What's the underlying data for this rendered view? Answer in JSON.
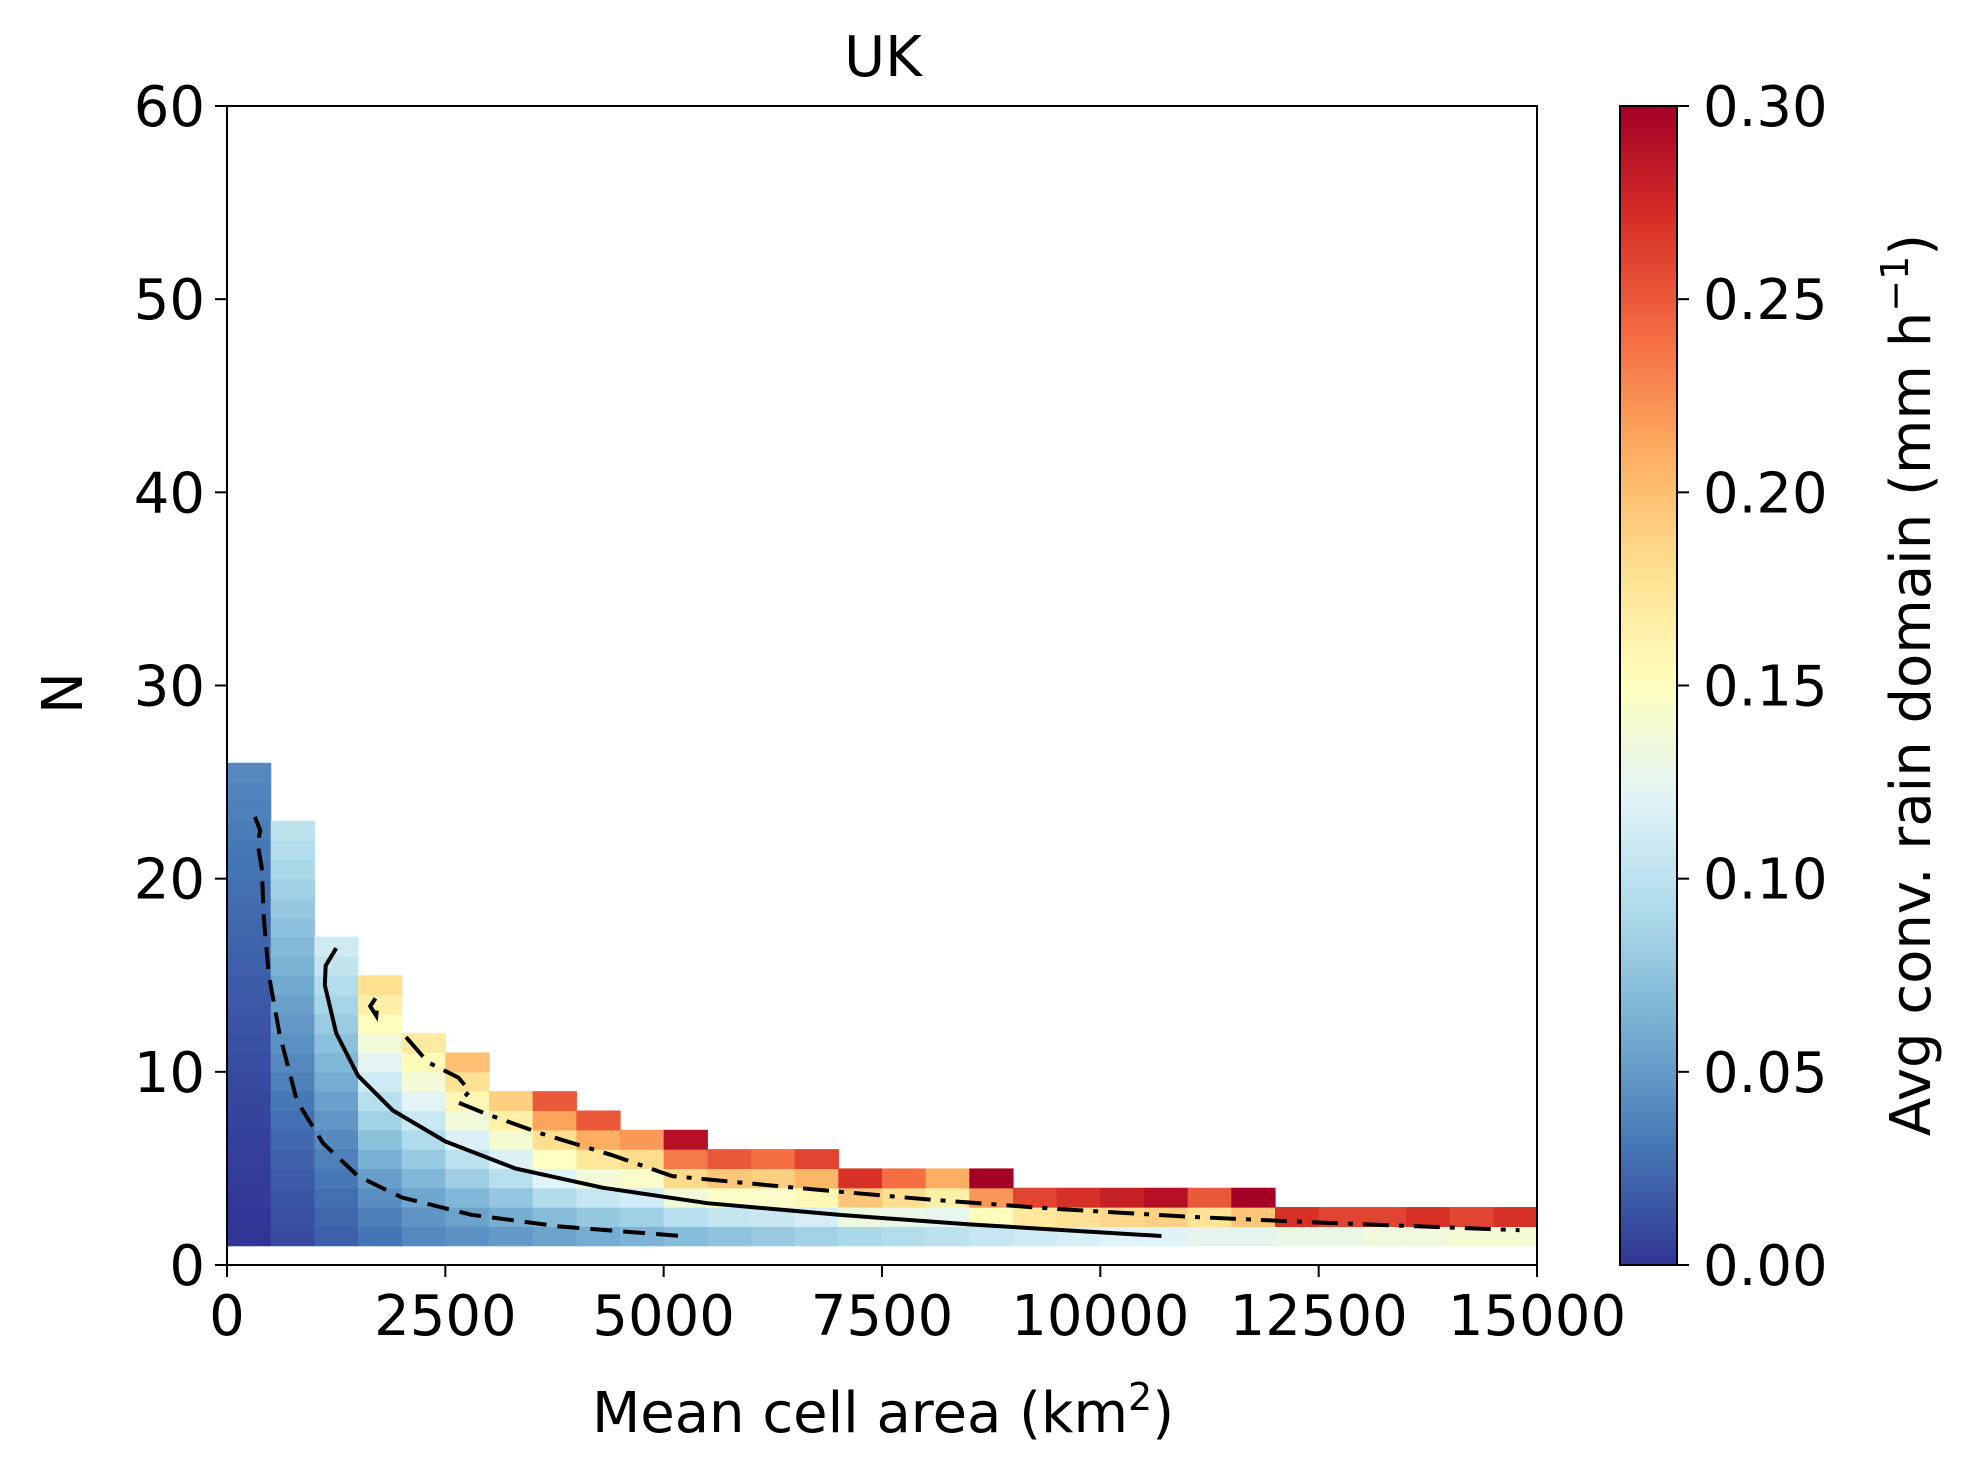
{
  "chart_data": {
    "type": "heatmap",
    "title": "UK",
    "xlabel": "Mean cell area (km",
    "xlabel_sup": "2",
    "xlabel_end": ")",
    "ylabel": "N",
    "xlim": [
      0,
      15000
    ],
    "ylim": [
      0,
      60
    ],
    "xticks": [
      "0",
      "2500",
      "5000",
      "7500",
      "10000",
      "12500",
      "15000"
    ],
    "xtick_values": [
      0,
      2500,
      5000,
      7500,
      10000,
      12500,
      15000
    ],
    "yticks": [
      "0",
      "10",
      "20",
      "30",
      "40",
      "50",
      "60"
    ],
    "ytick_values": [
      0,
      10,
      20,
      30,
      40,
      50,
      60
    ],
    "colorbar": {
      "label": "Avg conv. rain domain (mm h",
      "label_sup": "−1",
      "label_end": ")",
      "range": [
        0.0,
        0.3
      ],
      "ticks": [
        "0.00",
        "0.05",
        "0.10",
        "0.15",
        "0.20",
        "0.25",
        "0.30"
      ],
      "tick_values": [
        0.0,
        0.05,
        0.1,
        0.15,
        0.2,
        0.25,
        0.3
      ],
      "colormap": "RdYlBu_r"
    },
    "grid": false,
    "bin_width": 500,
    "bin_height": 1,
    "columns": [
      {
        "x0": 0,
        "n_min": 1,
        "n_max": 26,
        "v_low": 0.0,
        "v_high": 0.04
      },
      {
        "x0": 500,
        "n_min": 1,
        "n_max": 23,
        "v_low": 0.01,
        "v_high": 0.1
      },
      {
        "x0": 1000,
        "n_min": 1,
        "n_max": 17,
        "v_low": 0.02,
        "v_high": 0.11
      },
      {
        "x0": 1500,
        "n_min": 1,
        "n_max": 15,
        "v_low": 0.03,
        "v_high": 0.18
      },
      {
        "x0": 2000,
        "n_min": 1,
        "n_max": 12,
        "v_low": 0.04,
        "v_high": 0.17
      },
      {
        "x0": 2500,
        "n_min": 1,
        "n_max": 11,
        "v_low": 0.045,
        "v_high": 0.2
      },
      {
        "x0": 3000,
        "n_min": 1,
        "n_max": 9,
        "v_low": 0.05,
        "v_high": 0.19
      },
      {
        "x0": 3500,
        "n_min": 1,
        "n_max": 9,
        "v_low": 0.055,
        "v_high": 0.25
      },
      {
        "x0": 4000,
        "n_min": 1,
        "n_max": 8,
        "v_low": 0.06,
        "v_high": 0.25
      },
      {
        "x0": 4500,
        "n_min": 1,
        "n_max": 7,
        "v_low": 0.065,
        "v_high": 0.22
      },
      {
        "x0": 5000,
        "n_min": 1,
        "n_max": 7,
        "v_low": 0.07,
        "v_high": 0.29
      },
      {
        "x0": 5500,
        "n_min": 1,
        "n_max": 6,
        "v_low": 0.075,
        "v_high": 0.25
      },
      {
        "x0": 6000,
        "n_min": 1,
        "n_max": 6,
        "v_low": 0.08,
        "v_high": 0.24
      },
      {
        "x0": 6500,
        "n_min": 1,
        "n_max": 6,
        "v_low": 0.085,
        "v_high": 0.26
      },
      {
        "x0": 7000,
        "n_min": 1,
        "n_max": 5,
        "v_low": 0.09,
        "v_high": 0.27
      },
      {
        "x0": 7500,
        "n_min": 1,
        "n_max": 5,
        "v_low": 0.095,
        "v_high": 0.24
      },
      {
        "x0": 8000,
        "n_min": 1,
        "n_max": 5,
        "v_low": 0.1,
        "v_high": 0.21
      },
      {
        "x0": 8500,
        "n_min": 1,
        "n_max": 5,
        "v_low": 0.105,
        "v_high": 0.3
      },
      {
        "x0": 9000,
        "n_min": 1,
        "n_max": 4,
        "v_low": 0.11,
        "v_high": 0.26
      },
      {
        "x0": 9500,
        "n_min": 1,
        "n_max": 4,
        "v_low": 0.115,
        "v_high": 0.27
      },
      {
        "x0": 10000,
        "n_min": 1,
        "n_max": 4,
        "v_low": 0.12,
        "v_high": 0.28
      },
      {
        "x0": 10500,
        "n_min": 1,
        "n_max": 4,
        "v_low": 0.12,
        "v_high": 0.29
      },
      {
        "x0": 11000,
        "n_min": 1,
        "n_max": 4,
        "v_low": 0.125,
        "v_high": 0.25
      },
      {
        "x0": 11500,
        "n_min": 1,
        "n_max": 4,
        "v_low": 0.125,
        "v_high": 0.3
      },
      {
        "x0": 12000,
        "n_min": 1,
        "n_max": 3,
        "v_low": 0.13,
        "v_high": 0.27
      },
      {
        "x0": 12500,
        "n_min": 1,
        "n_max": 3,
        "v_low": 0.13,
        "v_high": 0.26
      },
      {
        "x0": 13000,
        "n_min": 1,
        "n_max": 3,
        "v_low": 0.135,
        "v_high": 0.26
      },
      {
        "x0": 13500,
        "n_min": 1,
        "n_max": 3,
        "v_low": 0.135,
        "v_high": 0.27
      },
      {
        "x0": 14000,
        "n_min": 1,
        "n_max": 3,
        "v_low": 0.14,
        "v_high": 0.26
      },
      {
        "x0": 14500,
        "n_min": 1,
        "n_max": 3,
        "v_low": 0.14,
        "v_high": 0.27
      }
    ],
    "contours": [
      {
        "style": "dashed",
        "points": [
          [
            320,
            23.2
          ],
          [
            380,
            22.5
          ],
          [
            350,
            21.8
          ],
          [
            400,
            20.5
          ],
          [
            420,
            18
          ],
          [
            480,
            15
          ],
          [
            600,
            12
          ],
          [
            800,
            8.5
          ],
          [
            1100,
            6.3
          ],
          [
            1500,
            4.6
          ],
          [
            2000,
            3.5
          ],
          [
            2800,
            2.6
          ],
          [
            3800,
            2.0
          ],
          [
            5200,
            1.5
          ]
        ]
      },
      {
        "style": "solid",
        "points": [
          [
            1250,
            16.4
          ],
          [
            1130,
            15.5
          ],
          [
            1120,
            14.5
          ],
          [
            1250,
            12
          ],
          [
            1500,
            9.8
          ],
          [
            1900,
            8.0
          ],
          [
            2500,
            6.4
          ],
          [
            3300,
            5.0
          ],
          [
            4300,
            4.0
          ],
          [
            5500,
            3.2
          ],
          [
            7000,
            2.6
          ],
          [
            8500,
            2.1
          ],
          [
            10700,
            1.5
          ]
        ]
      },
      {
        "style": "dashdot",
        "points": [
          [
            1700,
            13.8
          ],
          [
            1640,
            13.4
          ],
          [
            1710,
            12.9
          ],
          [
            1720,
            13.5
          ]
        ]
      },
      {
        "style": "dashdot",
        "points": [
          [
            2050,
            11.8
          ],
          [
            2300,
            10.5
          ],
          [
            2650,
            9.7
          ],
          [
            2780,
            9.0
          ],
          [
            2650,
            8.4
          ],
          [
            2980,
            7.8
          ],
          [
            3600,
            6.8
          ],
          [
            4400,
            5.7
          ],
          [
            5100,
            4.6
          ],
          [
            6500,
            4.0
          ],
          [
            8000,
            3.4
          ],
          [
            9500,
            2.9
          ],
          [
            11000,
            2.5
          ],
          [
            12500,
            2.2
          ],
          [
            14800,
            1.8
          ]
        ]
      }
    ]
  }
}
